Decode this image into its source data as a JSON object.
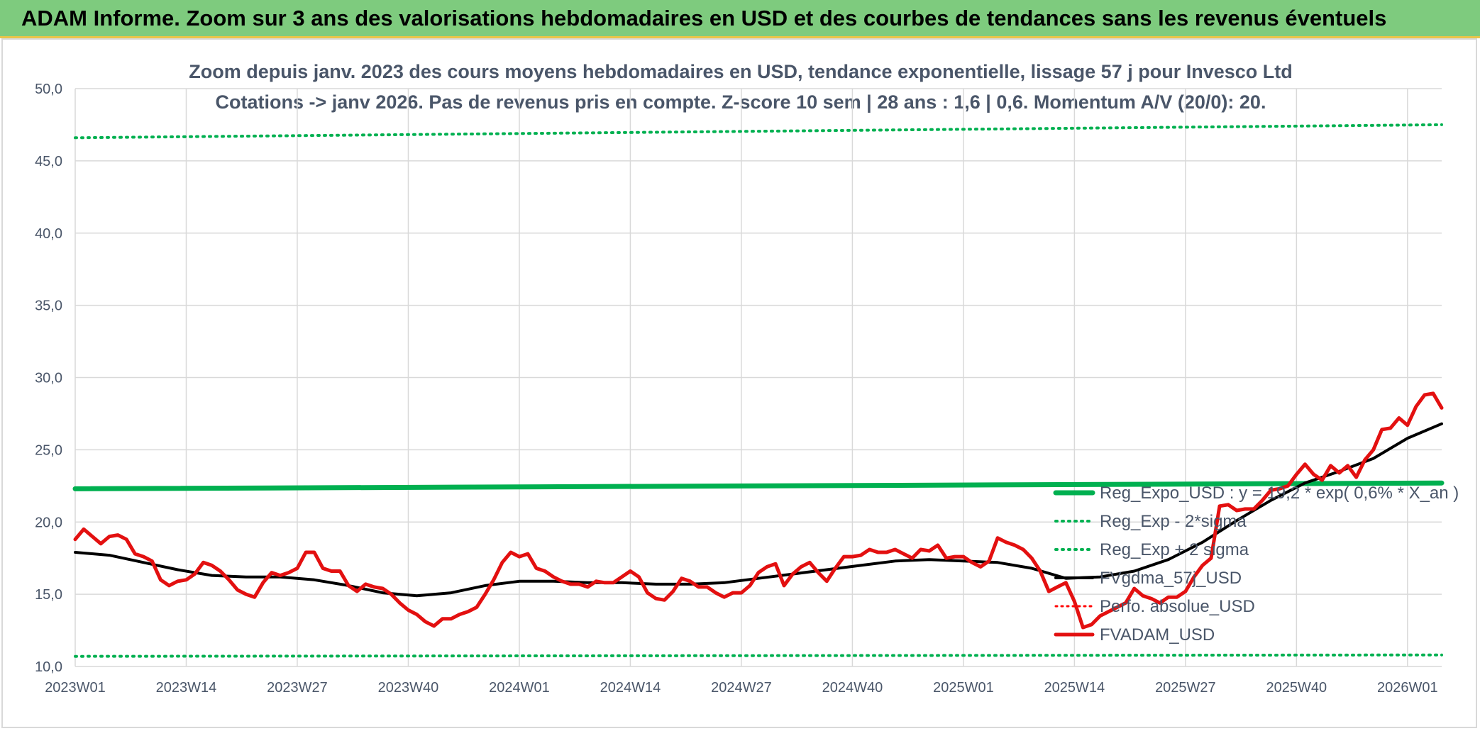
{
  "header": {
    "title": "ADAM Informe. Zoom sur 3 ans des valorisations hebdomadaires en USD et des courbes de tendances sans les revenus éventuels"
  },
  "colors": {
    "banner": "#7ecb7e",
    "reg_expo": "#00b050",
    "sigma": "#00b050",
    "smoothing": "#000000",
    "perfo": "#ff0000",
    "price": "#e31010",
    "grid": "#d9d9d9",
    "text": "#4a5669"
  },
  "chart_data": {
    "type": "line",
    "title_lines": [
      "Zoom depuis janv. 2023 des cours moyens hebdomadaires en USD, tendance exponentielle, lissage 57 j pour Invesco Ltd",
      "Cotations -> janv 2026. Pas de revenus pris en compte. Z-score 10 sem | 28 ans : 1,6 | 0,6. Momentum A/V (20/0): 20."
    ],
    "xlabel": "",
    "ylabel": "",
    "ylim": [
      10,
      50
    ],
    "yticks": [
      "10,0",
      "15,0",
      "20,0",
      "25,0",
      "30,0",
      "35,0",
      "40,0",
      "45,0",
      "50,0"
    ],
    "xticks": [
      {
        "label": "2023W01",
        "week": 0
      },
      {
        "label": "2023W14",
        "week": 13
      },
      {
        "label": "2023W27",
        "week": 26
      },
      {
        "label": "2023W40",
        "week": 39
      },
      {
        "label": "2024W01",
        "week": 52
      },
      {
        "label": "2024W14",
        "week": 65
      },
      {
        "label": "2024W27",
        "week": 78
      },
      {
        "label": "2024W40",
        "week": 91
      },
      {
        "label": "2025W01",
        "week": 104
      },
      {
        "label": "2025W14",
        "week": 117
      },
      {
        "label": "2025W27",
        "week": 130
      },
      {
        "label": "2025W40",
        "week": 143
      },
      {
        "label": "2026W01",
        "week": 156
      }
    ],
    "x_range": [
      0,
      160
    ],
    "grid": true,
    "legend_position": "bottom-right",
    "series": [
      {
        "name": "Reg_Expo_USD : y = 19,2 * exp( 0,6% *  X_an )",
        "style": "thick-solid",
        "x": [
          0,
          160
        ],
        "values": [
          22.3,
          22.7
        ]
      },
      {
        "name": "Reg_Exp - 2*sigma",
        "style": "dotted",
        "x": [
          0,
          160
        ],
        "values": [
          10.7,
          10.8
        ]
      },
      {
        "name": "Reg_Exp + 2 sigma",
        "style": "dotted",
        "x": [
          0,
          160
        ],
        "values": [
          46.6,
          47.5
        ]
      },
      {
        "name": "FVgdma_57j_USD",
        "style": "solid",
        "x": [
          0,
          4,
          8,
          12,
          16,
          20,
          24,
          28,
          32,
          36,
          40,
          44,
          48,
          52,
          56,
          60,
          64,
          68,
          72,
          76,
          80,
          84,
          88,
          92,
          96,
          100,
          104,
          108,
          112,
          116,
          120,
          124,
          128,
          132,
          136,
          140,
          144,
          148,
          152,
          156,
          160
        ],
        "values": [
          17.9,
          17.7,
          17.2,
          16.7,
          16.3,
          16.2,
          16.2,
          16.0,
          15.6,
          15.1,
          14.9,
          15.1,
          15.6,
          15.9,
          15.9,
          15.8,
          15.8,
          15.7,
          15.7,
          15.8,
          16.1,
          16.4,
          16.7,
          17.0,
          17.3,
          17.4,
          17.3,
          17.2,
          16.8,
          16.1,
          16.2,
          16.6,
          17.4,
          18.6,
          20.1,
          21.5,
          22.7,
          23.5,
          24.4,
          25.8,
          26.8
        ]
      },
      {
        "name": "Perfo. absolue_USD",
        "style": "dotted",
        "x": [],
        "values": []
      },
      {
        "name": "FVADAM_USD",
        "style": "thick-solid",
        "x": [
          0,
          1,
          2,
          3,
          4,
          5,
          6,
          7,
          8,
          9,
          10,
          11,
          12,
          13,
          14,
          15,
          16,
          17,
          18,
          19,
          20,
          21,
          22,
          23,
          24,
          25,
          26,
          27,
          28,
          29,
          30,
          31,
          32,
          33,
          34,
          35,
          36,
          37,
          38,
          39,
          40,
          41,
          42,
          43,
          44,
          45,
          46,
          47,
          48,
          49,
          50,
          51,
          52,
          53,
          54,
          55,
          56,
          57,
          58,
          59,
          60,
          61,
          62,
          63,
          64,
          65,
          66,
          67,
          68,
          69,
          70,
          71,
          72,
          73,
          74,
          75,
          76,
          77,
          78,
          79,
          80,
          81,
          82,
          83,
          84,
          85,
          86,
          87,
          88,
          89,
          90,
          91,
          92,
          93,
          94,
          95,
          96,
          97,
          98,
          99,
          100,
          101,
          102,
          103,
          104,
          105,
          106,
          107,
          108,
          109,
          110,
          111,
          112,
          113,
          114,
          115,
          116,
          117,
          118,
          119,
          120,
          121,
          122,
          123,
          124,
          125,
          126,
          127,
          128,
          129,
          130,
          131,
          132,
          133,
          134,
          135,
          136,
          137,
          138,
          139,
          140,
          141,
          142,
          143,
          144,
          145,
          146,
          147,
          148,
          149,
          150,
          151,
          152,
          153,
          154,
          155,
          156,
          157,
          158,
          159,
          160
        ],
        "values": [
          18.8,
          19.5,
          19.0,
          18.5,
          19.0,
          19.1,
          18.8,
          17.8,
          17.6,
          17.3,
          16.0,
          15.6,
          15.9,
          16.0,
          16.4,
          17.2,
          17.0,
          16.6,
          16.0,
          15.3,
          15.0,
          14.8,
          15.8,
          16.5,
          16.3,
          16.5,
          16.8,
          17.9,
          17.9,
          16.8,
          16.6,
          16.6,
          15.6,
          15.2,
          15.7,
          15.5,
          15.4,
          15.0,
          14.4,
          13.9,
          13.6,
          13.1,
          12.8,
          13.3,
          13.3,
          13.6,
          13.8,
          14.1,
          15.0,
          16.0,
          17.2,
          17.9,
          17.6,
          17.8,
          16.8,
          16.6,
          16.2,
          15.9,
          15.7,
          15.7,
          15.5,
          15.9,
          15.8,
          15.8,
          16.2,
          16.6,
          16.2,
          15.1,
          14.7,
          14.6,
          15.2,
          16.1,
          15.9,
          15.5,
          15.5,
          15.1,
          14.8,
          15.1,
          15.1,
          15.6,
          16.5,
          16.9,
          17.1,
          15.6,
          16.4,
          16.9,
          17.2,
          16.5,
          15.9,
          16.8,
          17.6,
          17.6,
          17.7,
          18.1,
          17.9,
          17.9,
          18.1,
          17.8,
          17.5,
          18.1,
          18.0,
          18.4,
          17.5,
          17.6,
          17.6,
          17.2,
          16.9,
          17.3,
          18.9,
          18.6,
          18.4,
          18.1,
          17.5,
          16.6,
          15.2,
          15.5,
          15.8,
          14.5,
          12.7,
          12.9,
          13.5,
          13.8,
          14.1,
          14.4,
          15.4,
          14.9,
          14.7,
          14.4,
          14.8,
          14.8,
          15.2,
          16.2,
          17.0,
          17.5,
          21.1,
          21.2,
          20.8,
          20.9,
          20.9,
          21.5,
          22.2,
          22.3,
          22.5,
          23.3,
          24.0,
          23.3,
          22.9,
          23.9,
          23.4,
          23.9,
          23.1,
          24.3,
          25.0,
          26.4,
          26.5,
          27.2,
          26.7,
          28.0,
          28.8,
          28.9,
          27.9
        ]
      }
    ]
  }
}
